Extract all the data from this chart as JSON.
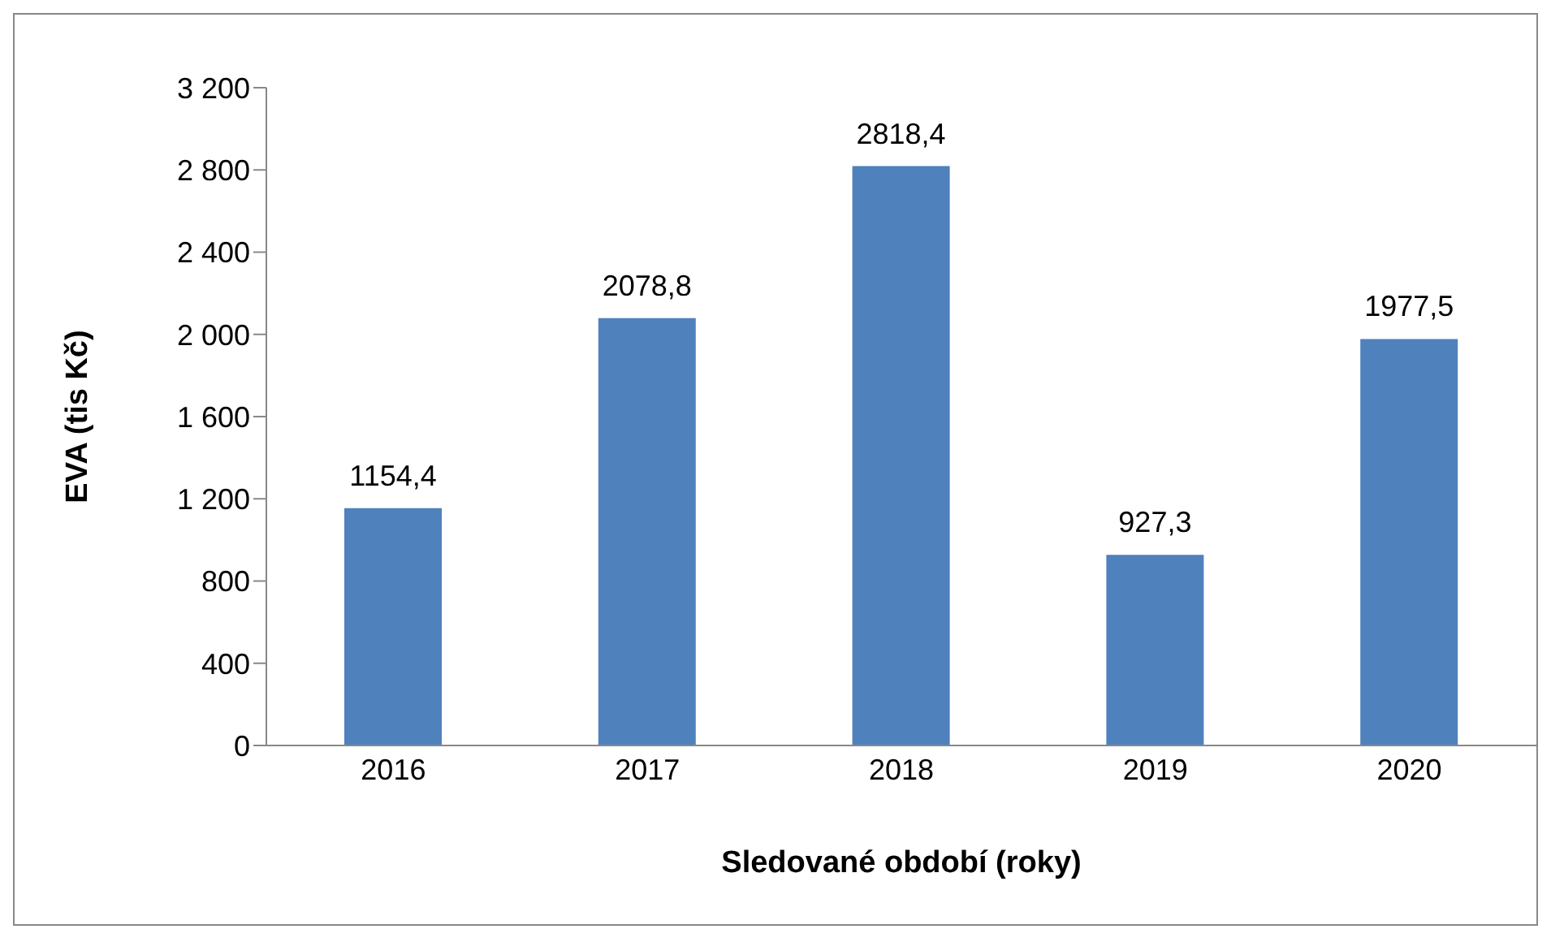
{
  "chart_data": {
    "type": "bar",
    "xlabel": "Sledované období (roky)",
    "ylabel": "EVA (tis Kč)",
    "categories": [
      "2016",
      "2017",
      "2018",
      "2019",
      "2020"
    ],
    "values": [
      1154.4,
      2078.8,
      2818.4,
      927.3,
      1977.5
    ],
    "value_labels": [
      "1154,4",
      "2078,8",
      "2818,4",
      "927,3",
      "1977,5"
    ],
    "color": "#4f81bd",
    "ylim": [
      0,
      3200
    ],
    "yticks": [
      {
        "value": 0,
        "label": "0"
      },
      {
        "value": 400,
        "label": "400"
      },
      {
        "value": 800,
        "label": "800"
      },
      {
        "value": 1200,
        "label": "1 200"
      },
      {
        "value": 1600,
        "label": "1 600"
      },
      {
        "value": 2000,
        "label": "2 000"
      },
      {
        "value": 2400,
        "label": "2 400"
      },
      {
        "value": 2800,
        "label": "2 800"
      },
      {
        "value": 3200,
        "label": "3 200"
      }
    ],
    "grid": false,
    "legend": false
  }
}
